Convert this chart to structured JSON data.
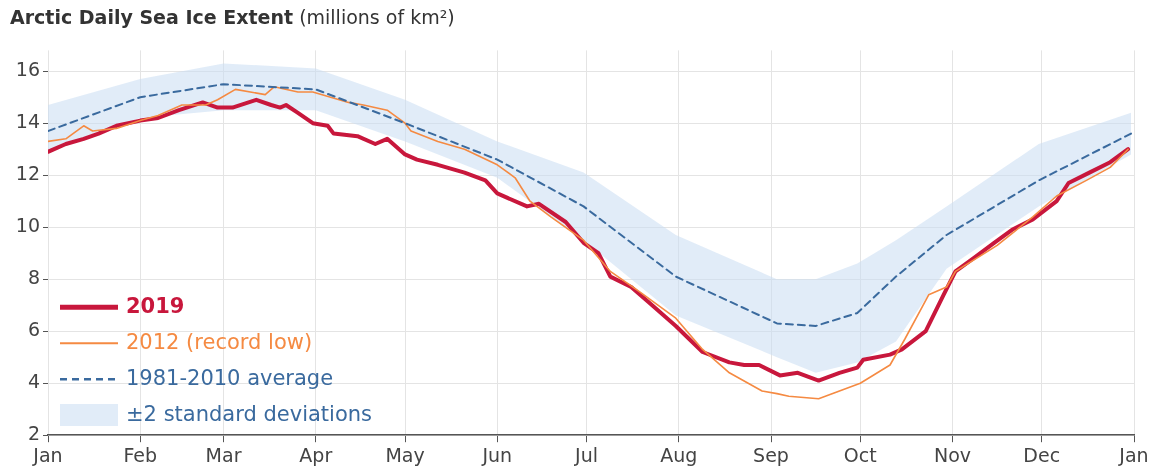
{
  "chart_data": {
    "type": "line",
    "title": "Arctic Daily Sea Ice Extent",
    "ylabel": "(millions of km²)",
    "xlim": [
      "2019-01-01",
      "2020-01-01"
    ],
    "xticks": [
      {
        "value": "2019-01-01",
        "label": "Jan"
      },
      {
        "value": "2019-02-01",
        "label": "Feb"
      },
      {
        "value": "2019-03-01",
        "label": "Mar"
      },
      {
        "value": "2019-04-01",
        "label": "Apr"
      },
      {
        "value": "2019-05-01",
        "label": "May"
      },
      {
        "value": "2019-06-01",
        "label": "Jun"
      },
      {
        "value": "2019-07-01",
        "label": "Jul"
      },
      {
        "value": "2019-08-01",
        "label": "Aug"
      },
      {
        "value": "2019-09-01",
        "label": "Sep"
      },
      {
        "value": "2019-10-01",
        "label": "Oct"
      },
      {
        "value": "2019-11-01",
        "label": "Nov"
      },
      {
        "value": "2019-12-01",
        "label": "Dec"
      },
      {
        "value": "2020-01-01",
        "label": "Jan"
      }
    ],
    "ylim": [
      2,
      16.8
    ],
    "yticks": [
      2,
      4,
      6,
      8,
      10,
      12,
      14,
      16
    ],
    "grid": true,
    "legend": "bottom left",
    "marker": "none",
    "annotations": [
      "±2 standard deviations"
    ],
    "series": [
      {
        "name": "2019",
        "color": "#c8173c",
        "x": [
          "2019-01-01",
          "2019-01-07",
          "2019-01-13",
          "2019-01-18",
          "2019-01-24",
          "2019-02-01",
          "2019-02-07",
          "2019-02-14",
          "2019-02-22",
          "2019-02-27",
          "2019-03-04",
          "2019-03-12",
          "2019-03-17",
          "2019-03-20",
          "2019-03-22",
          "2019-03-26",
          "2019-03-31",
          "2019-04-05",
          "2019-04-07",
          "2019-04-15",
          "2019-04-21",
          "2019-04-25",
          "2019-05-01",
          "2019-05-05",
          "2019-05-12",
          "2019-05-21",
          "2019-05-28",
          "2019-06-01",
          "2019-06-11",
          "2019-06-15",
          "2019-06-24",
          "2019-06-30",
          "2019-07-05",
          "2019-07-09",
          "2019-07-16",
          "2019-07-22",
          "2019-07-31",
          "2019-08-09",
          "2019-08-18",
          "2019-08-23",
          "2019-08-28",
          "2019-09-04",
          "2019-09-10",
          "2019-09-17",
          "2019-09-24",
          "2019-09-30",
          "2019-10-02",
          "2019-10-11",
          "2019-10-15",
          "2019-10-23",
          "2019-10-29",
          "2019-11-02",
          "2019-11-08",
          "2019-11-15",
          "2019-11-21",
          "2019-11-28",
          "2019-12-06",
          "2019-12-10",
          "2019-12-17",
          "2019-12-24",
          "2019-12-30"
        ],
        "values": [
          12.9,
          13.2,
          13.4,
          13.6,
          13.9,
          14.1,
          14.2,
          14.5,
          14.8,
          14.6,
          14.6,
          14.9,
          14.7,
          14.6,
          14.7,
          14.4,
          14.0,
          13.9,
          13.6,
          13.5,
          13.2,
          13.4,
          12.8,
          12.6,
          12.4,
          12.1,
          11.8,
          11.3,
          10.8,
          10.9,
          10.2,
          9.4,
          9.0,
          8.1,
          7.7,
          7.1,
          6.2,
          5.2,
          4.8,
          4.7,
          4.7,
          4.3,
          4.4,
          4.1,
          4.4,
          4.6,
          4.9,
          5.1,
          5.3,
          6.0,
          7.4,
          8.3,
          8.8,
          9.4,
          9.9,
          10.3,
          11.0,
          11.7,
          12.1,
          12.5,
          13.0
        ]
      },
      {
        "name": "2012 (record low)",
        "color": "#f58a42",
        "x": [
          "2019-01-01",
          "2019-01-07",
          "2019-01-13",
          "2019-01-16",
          "2019-01-24",
          "2019-02-01",
          "2019-02-07",
          "2019-02-15",
          "2019-02-23",
          "2019-02-27",
          "2019-03-05",
          "2019-03-15",
          "2019-03-18",
          "2019-03-26",
          "2019-03-31",
          "2019-04-06",
          "2019-04-12",
          "2019-04-17",
          "2019-04-25",
          "2019-05-01",
          "2019-05-03",
          "2019-05-12",
          "2019-05-21",
          "2019-06-01",
          "2019-06-07",
          "2019-06-12",
          "2019-06-19",
          "2019-06-30",
          "2019-07-09",
          "2019-07-19",
          "2019-07-31",
          "2019-08-09",
          "2019-08-18",
          "2019-08-29",
          "2019-09-03",
          "2019-09-07",
          "2019-09-17",
          "2019-09-24",
          "2019-10-01",
          "2019-10-11",
          "2019-10-16",
          "2019-10-24",
          "2019-10-30",
          "2019-11-02",
          "2019-11-16",
          "2019-11-28",
          "2019-12-06",
          "2019-12-16",
          "2019-12-24",
          "2019-12-30"
        ],
        "values": [
          13.3,
          13.4,
          13.9,
          13.7,
          13.8,
          14.1,
          14.3,
          14.7,
          14.7,
          14.9,
          15.3,
          15.1,
          15.4,
          15.2,
          15.2,
          15.0,
          14.8,
          14.7,
          14.5,
          14.0,
          13.7,
          13.3,
          13.0,
          12.4,
          11.9,
          11.0,
          10.4,
          9.5,
          8.3,
          7.5,
          6.5,
          5.3,
          4.4,
          3.7,
          3.6,
          3.5,
          3.4,
          3.7,
          4.0,
          4.7,
          5.7,
          7.4,
          7.7,
          8.3,
          9.3,
          10.4,
          11.2,
          11.8,
          12.3,
          13.0
        ]
      },
      {
        "name": "1981-2010 average",
        "color": "#3a6a9e",
        "line_style": "dashed",
        "x": [
          "2019-01-01",
          "2019-02-01",
          "2019-03-01",
          "2019-04-01",
          "2019-05-01",
          "2019-06-01",
          "2019-06-30",
          "2019-07-31",
          "2019-09-03",
          "2019-09-16",
          "2019-09-30",
          "2019-10-13",
          "2019-10-30",
          "2019-11-30",
          "2019-12-31"
        ],
        "values": [
          13.7,
          15.0,
          15.5,
          15.3,
          14.0,
          12.6,
          10.8,
          8.1,
          6.3,
          6.2,
          6.7,
          8.1,
          9.7,
          11.8,
          13.6
        ],
        "lower": [
          12.9,
          14.2,
          14.5,
          14.5,
          13.3,
          11.9,
          9.5,
          6.6,
          5.0,
          4.4,
          4.8,
          5.6,
          8.4,
          10.8,
          12.8
        ],
        "upper": [
          14.7,
          15.7,
          16.3,
          16.1,
          14.9,
          13.3,
          12.1,
          9.7,
          8.0,
          8.0,
          8.6,
          9.5,
          10.8,
          13.2,
          14.4
        ]
      }
    ]
  }
}
